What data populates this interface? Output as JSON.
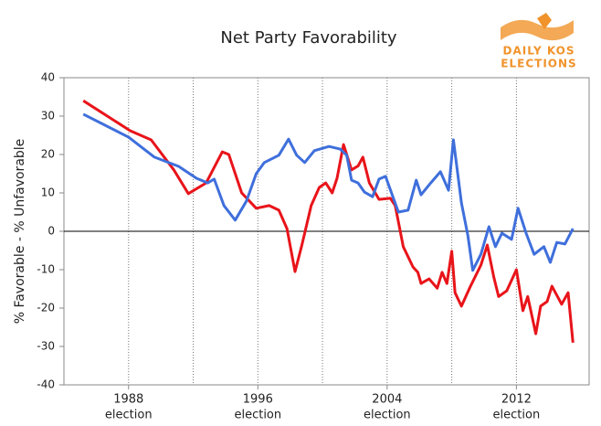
{
  "chart_data": {
    "type": "line",
    "title": "Net Party Favorability",
    "y_label": "% Favorable - % Unfavorable",
    "logo": {
      "line1": "DAILY KOS",
      "line2": "ELECTIONS"
    },
    "x_tick_sublabel": "election",
    "xlim": [
      1984,
      2016.5
    ],
    "xticks": [
      1988,
      1996,
      2004,
      2012
    ],
    "xgrid_lines": [
      1988,
      1992,
      1996,
      2000,
      2004,
      2008,
      2012
    ],
    "ylim": [
      -40,
      40
    ],
    "yticks": [
      -40,
      -30,
      -20,
      -10,
      0,
      10,
      20,
      30,
      40
    ],
    "zero_line": true,
    "series": [
      {
        "color": "#e8141a",
        "x": [
          1985.2,
          1988.1,
          1989.4,
          1990.8,
          1991.7,
          1992.8,
          1993.8,
          1994.2,
          1995,
          1995.9,
          1996.7,
          1997.3,
          1997.8,
          1998.3,
          1998.7,
          1999.3,
          1999.8,
          2000.2,
          2000.6,
          2000.9,
          2001.3,
          2001.8,
          2002.2,
          2002.5,
          2002.9,
          2003.5,
          2004.2,
          2004.5,
          2005,
          2005.6,
          2005.9,
          2006.1,
          2006.6,
          2007.1,
          2007.4,
          2007.7,
          2008,
          2008.2,
          2008.6,
          2009.1,
          2009.8,
          2010.2,
          2010.6,
          2010.9,
          2011.4,
          2012,
          2012.4,
          2012.7,
          2013.2,
          2013.5,
          2013.9,
          2014.2,
          2014.8,
          2015.2,
          2015.5
        ],
        "values": [
          34,
          26.2,
          23.8,
          16,
          9.8,
          12.6,
          20.7,
          20,
          10,
          6,
          6.7,
          5.5,
          0.7,
          -10.5,
          -4,
          6.7,
          11.4,
          12.6,
          10,
          13.8,
          22.6,
          16,
          17,
          19.3,
          12.6,
          8.3,
          8.6,
          6.7,
          -4,
          -9.3,
          -10.7,
          -13.6,
          -12.4,
          -14.8,
          -10.7,
          -13.6,
          -5.2,
          -16,
          -19.5,
          -14.8,
          -8.8,
          -3.6,
          -11.9,
          -17,
          -15.5,
          -10,
          -20.7,
          -17,
          -26.7,
          -19.5,
          -18.3,
          -14.3,
          -19,
          -16,
          -29
        ]
      },
      {
        "color": "#3f6fdc",
        "x": [
          1985.2,
          1988,
          1989.6,
          1991.1,
          1992.2,
          1992.9,
          1993.3,
          1993.9,
          1994.6,
          1995.3,
          1995.9,
          1996.4,
          1997.3,
          1997.9,
          1998.4,
          1998.9,
          1999.5,
          2000.4,
          2001.1,
          2001.5,
          2001.8,
          2002.2,
          2002.6,
          2003.1,
          2003.5,
          2003.9,
          2004.7,
          2005.3,
          2005.8,
          2006.1,
          2006.7,
          2007.3,
          2007.8,
          2008.1,
          2008.6,
          2009,
          2009.3,
          2009.8,
          2010.3,
          2010.7,
          2011.1,
          2011.7,
          2012.1,
          2012.6,
          2013.1,
          2013.7,
          2014.1,
          2014.5,
          2015,
          2015.5
        ],
        "values": [
          30.5,
          24.5,
          19.3,
          16.9,
          13.8,
          12.6,
          13.6,
          6.7,
          2.9,
          7.9,
          15,
          17.9,
          19.8,
          24,
          19.8,
          17.9,
          21,
          22.1,
          21.4,
          19.8,
          13.3,
          12.6,
          10.2,
          9,
          13.6,
          14.3,
          5,
          5.5,
          13.3,
          9.5,
          12.6,
          15.5,
          10.7,
          23.8,
          7.4,
          -1.2,
          -10.2,
          -6,
          1.2,
          -4,
          -0.5,
          -2.1,
          6,
          -0.5,
          -6,
          -4,
          -8.1,
          -2.9,
          -3.3,
          0.7
        ]
      }
    ]
  }
}
